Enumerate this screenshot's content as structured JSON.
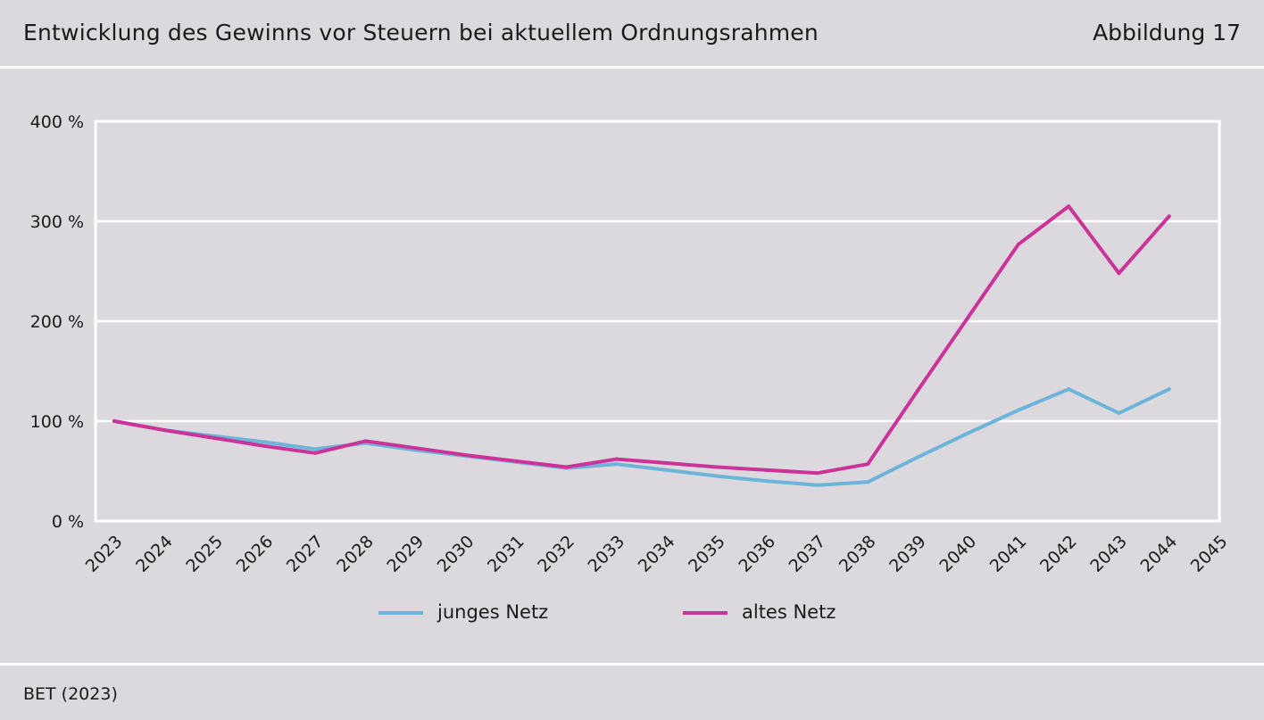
{
  "header": {
    "title": "Entwicklung des Gewinns vor Steuern bei aktuellem Ordnungsrahmen",
    "figure_label": "Abbildung 17"
  },
  "footer": {
    "source": "BET (2023)"
  },
  "colors": {
    "background": "#dbd9de",
    "grid": "#ffffff",
    "junges_netz": "#6cb4d9",
    "altes_netz": "#cc3399"
  },
  "chart_data": {
    "type": "line",
    "categories": [
      "2023",
      "2024",
      "2025",
      "2026",
      "2027",
      "2028",
      "2029",
      "2030",
      "2031",
      "2032",
      "2033",
      "2034",
      "2035",
      "2036",
      "2037",
      "2038",
      "2039",
      "2040",
      "2041",
      "2042",
      "2043",
      "2044",
      "2045"
    ],
    "y_tick_labels": [
      "0 %",
      "100 %",
      "200 %",
      "300 %",
      "400 %"
    ],
    "y_ticks": [
      0,
      100,
      200,
      300,
      400
    ],
    "ylim": [
      0,
      400
    ],
    "ylabel": "",
    "xlabel": "",
    "grid": true,
    "legend_position": "bottom",
    "series": [
      {
        "name": "junges Netz",
        "color": "#6cb4d9",
        "values": [
          100,
          91,
          85,
          79,
          72,
          78,
          71,
          65,
          59,
          53,
          57,
          51,
          45,
          40,
          36,
          39,
          64,
          88,
          111,
          132,
          108,
          132,
          null
        ]
      },
      {
        "name": "altes Netz",
        "color": "#cc3399",
        "values": [
          100,
          91,
          83,
          75,
          68,
          80,
          73,
          66,
          60,
          54,
          62,
          58,
          54,
          51,
          48,
          57,
          131,
          204,
          277,
          315,
          248,
          305,
          null
        ]
      }
    ]
  }
}
